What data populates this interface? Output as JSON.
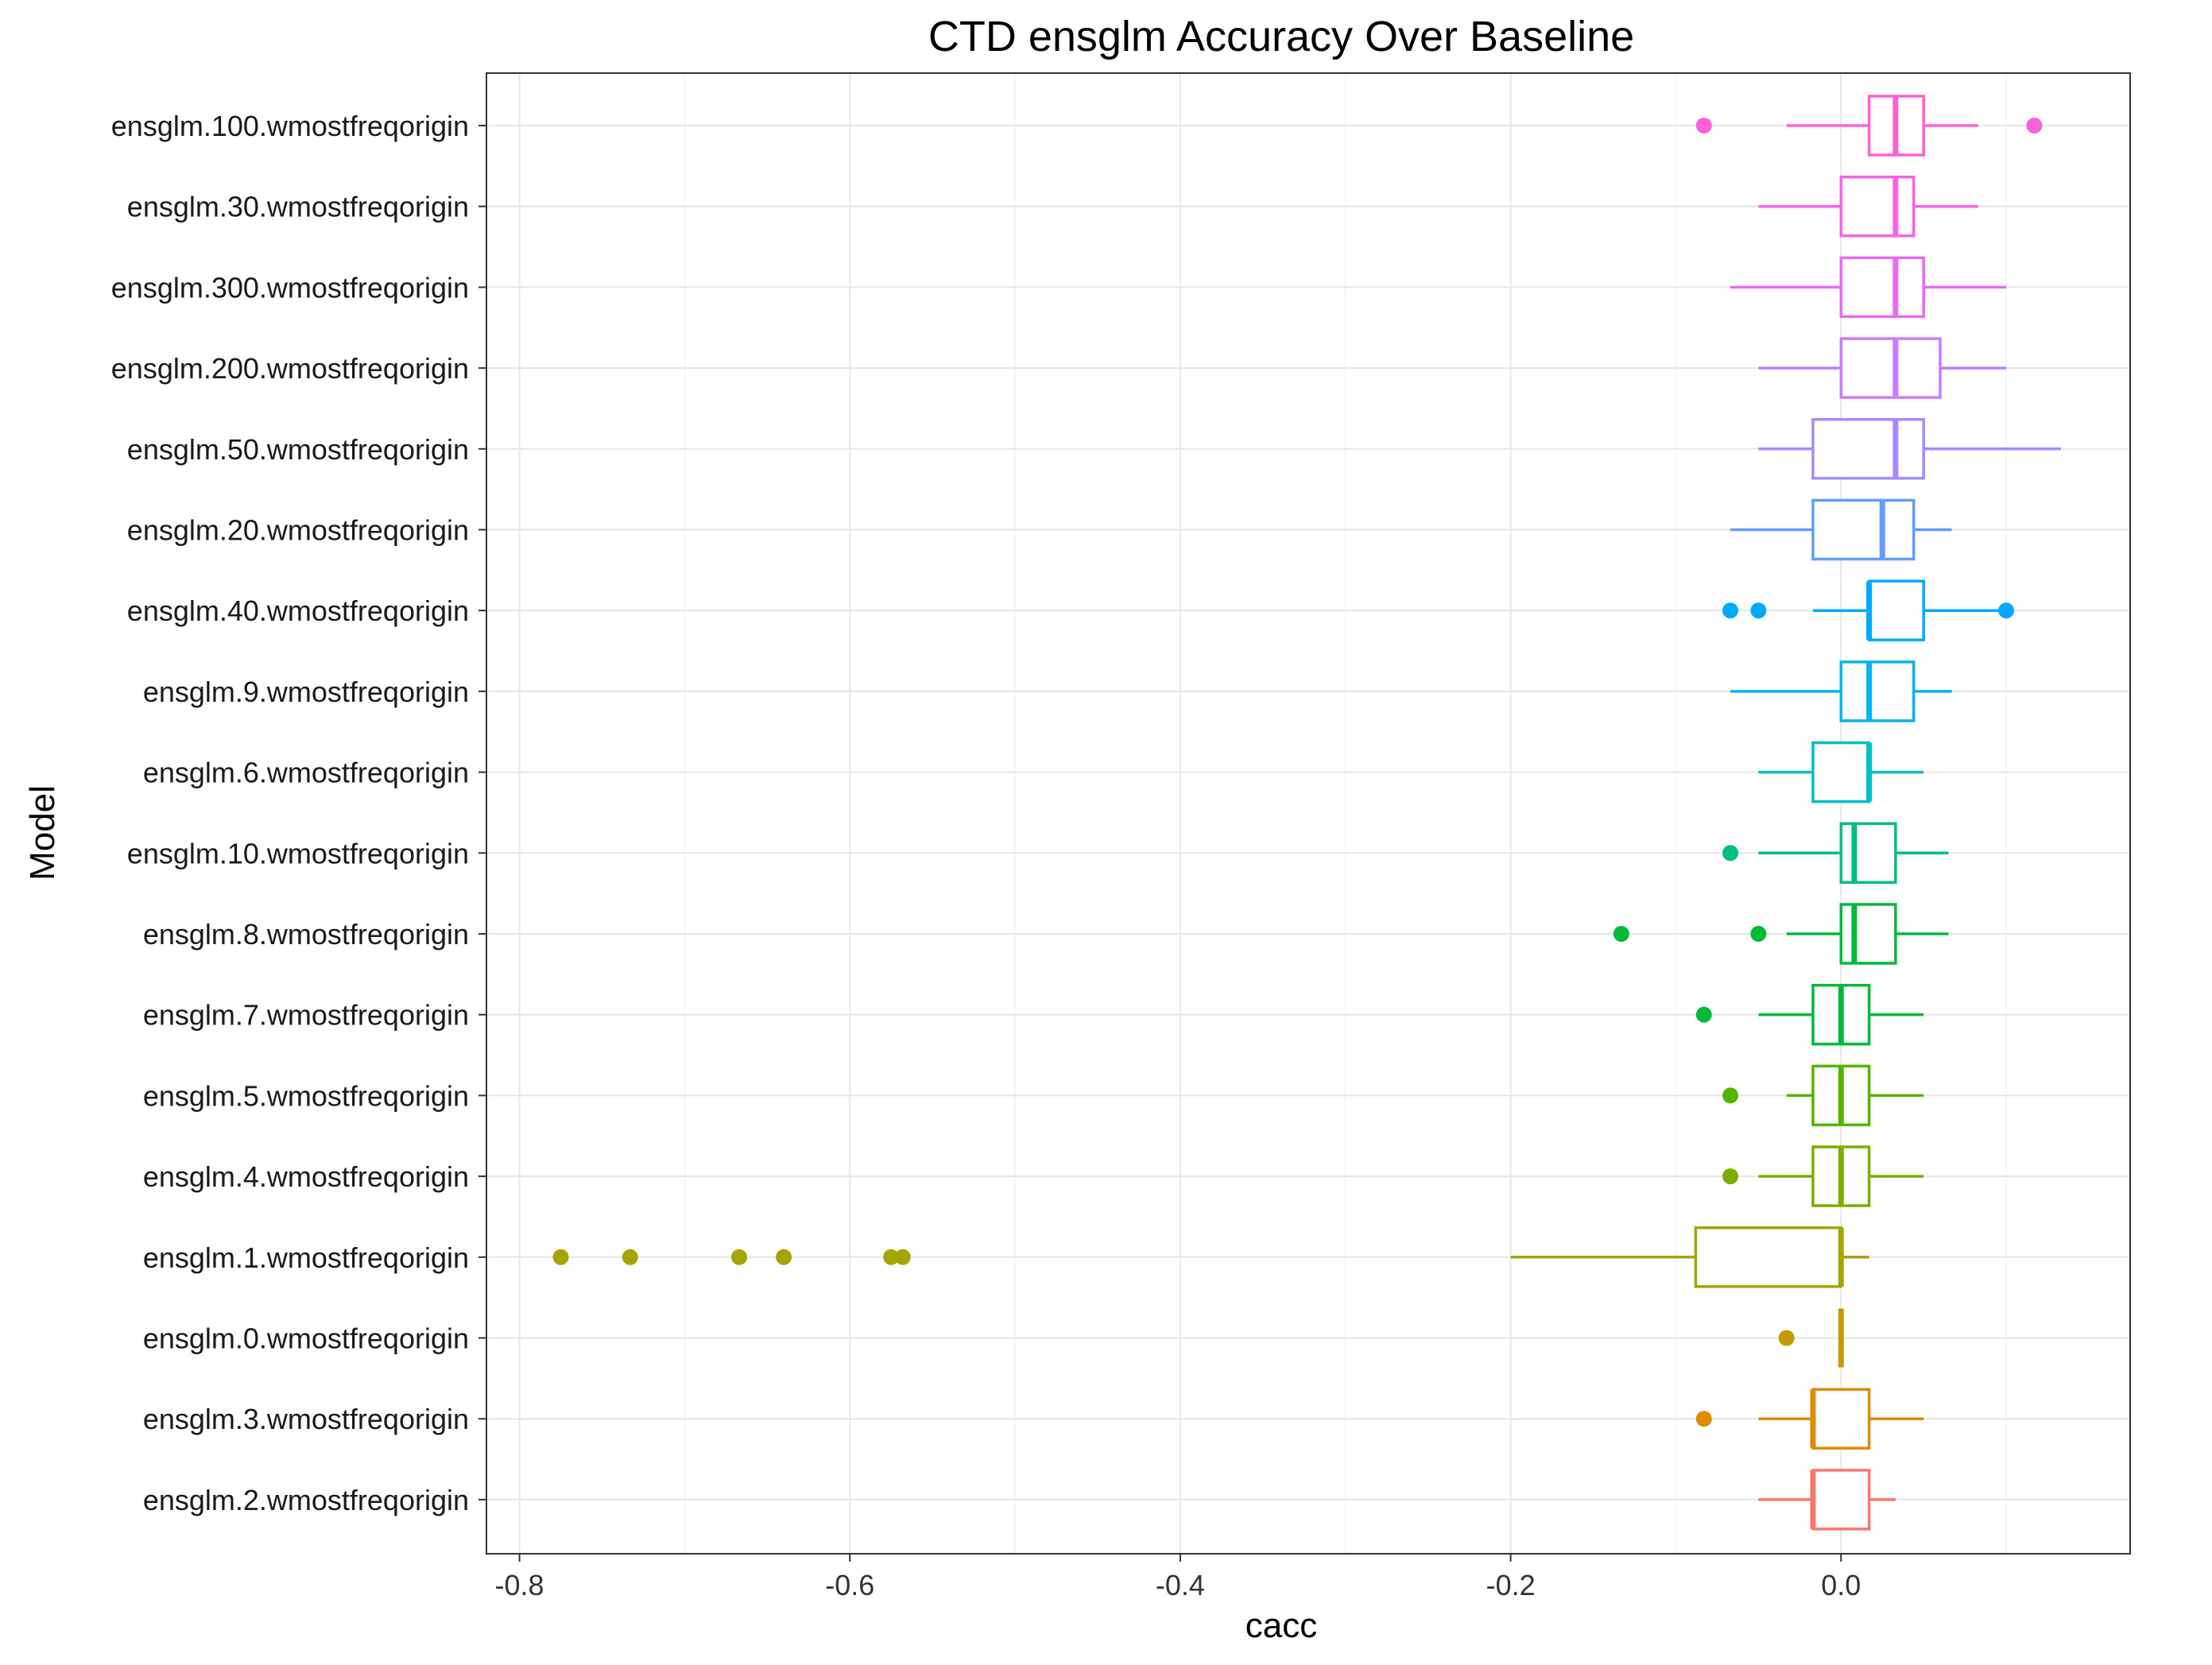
{
  "chart_data": {
    "type": "boxplot",
    "orientation": "horizontal",
    "title": "CTD ensglm Accuracy Over Baseline",
    "xlabel": "cacc",
    "ylabel": "Model",
    "xlim": [
      -0.82,
      0.175
    ],
    "xticks": [
      -0.8,
      -0.6,
      -0.4,
      -0.2,
      0.0
    ],
    "xtick_labels": [
      "-0.8",
      "-0.6",
      "-0.4",
      "-0.2",
      "0.0"
    ],
    "grid": true,
    "legend": "none",
    "categories": [
      "ensglm.100.wmostfreqorigin",
      "ensglm.30.wmostfreqorigin",
      "ensglm.300.wmostfreqorigin",
      "ensglm.200.wmostfreqorigin",
      "ensglm.50.wmostfreqorigin",
      "ensglm.20.wmostfreqorigin",
      "ensglm.40.wmostfreqorigin",
      "ensglm.9.wmostfreqorigin",
      "ensglm.6.wmostfreqorigin",
      "ensglm.10.wmostfreqorigin",
      "ensglm.8.wmostfreqorigin",
      "ensglm.7.wmostfreqorigin",
      "ensglm.5.wmostfreqorigin",
      "ensglm.4.wmostfreqorigin",
      "ensglm.1.wmostfreqorigin",
      "ensglm.0.wmostfreqorigin",
      "ensglm.3.wmostfreqorigin",
      "ensglm.2.wmostfreqorigin"
    ],
    "boxes": [
      {
        "whisker_low": -0.033,
        "q1": 0.017,
        "median": 0.033,
        "q3": 0.05,
        "whisker_high": 0.083,
        "outliers": [
          -0.083,
          0.117
        ],
        "color": "#FB61D7"
      },
      {
        "whisker_low": -0.05,
        "q1": 0.0,
        "median": 0.033,
        "q3": 0.044,
        "whisker_high": 0.083,
        "outliers": [],
        "color": "#F564E3"
      },
      {
        "whisker_low": -0.067,
        "q1": 0.0,
        "median": 0.033,
        "q3": 0.05,
        "whisker_high": 0.1,
        "outliers": [],
        "color": "#E76BF3"
      },
      {
        "whisker_low": -0.05,
        "q1": 0.0,
        "median": 0.033,
        "q3": 0.06,
        "whisker_high": 0.1,
        "outliers": [],
        "color": "#C77CFF"
      },
      {
        "whisker_low": -0.05,
        "q1": -0.017,
        "median": 0.033,
        "q3": 0.05,
        "whisker_high": 0.133,
        "outliers": [],
        "color": "#A58AFF"
      },
      {
        "whisker_low": -0.067,
        "q1": -0.017,
        "median": 0.025,
        "q3": 0.044,
        "whisker_high": 0.067,
        "outliers": [],
        "color": "#619CFF"
      },
      {
        "whisker_low": -0.017,
        "q1": 0.017,
        "median": 0.017,
        "q3": 0.05,
        "whisker_high": 0.1,
        "outliers": [
          -0.067,
          -0.05,
          0.1
        ],
        "color": "#00A9FF"
      },
      {
        "whisker_low": -0.067,
        "q1": 0.0,
        "median": 0.017,
        "q3": 0.044,
        "whisker_high": 0.067,
        "outliers": [],
        "color": "#00B4EF"
      },
      {
        "whisker_low": -0.05,
        "q1": -0.017,
        "median": 0.017,
        "q3": 0.017,
        "whisker_high": 0.05,
        "outliers": [],
        "color": "#00BFC4"
      },
      {
        "whisker_low": -0.05,
        "q1": 0.0,
        "median": 0.008,
        "q3": 0.033,
        "whisker_high": 0.065,
        "outliers": [
          -0.067
        ],
        "color": "#00BF7D"
      },
      {
        "whisker_low": -0.033,
        "q1": 0.0,
        "median": 0.008,
        "q3": 0.033,
        "whisker_high": 0.065,
        "outliers": [
          -0.133,
          -0.05
        ],
        "color": "#00BA38"
      },
      {
        "whisker_low": -0.05,
        "q1": -0.017,
        "median": 0.0,
        "q3": 0.017,
        "whisker_high": 0.05,
        "outliers": [
          -0.083
        ],
        "color": "#00BA38"
      },
      {
        "whisker_low": -0.033,
        "q1": -0.017,
        "median": 0.0,
        "q3": 0.017,
        "whisker_high": 0.05,
        "outliers": [
          -0.067
        ],
        "color": "#53B400"
      },
      {
        "whisker_low": -0.05,
        "q1": -0.017,
        "median": 0.0,
        "q3": 0.017,
        "whisker_high": 0.05,
        "outliers": [
          -0.067
        ],
        "color": "#7CAE00"
      },
      {
        "whisker_low": -0.2,
        "q1": -0.088,
        "median": 0.0,
        "q3": 0.0,
        "whisker_high": 0.017,
        "outliers": [
          -0.775,
          -0.733,
          -0.667,
          -0.64,
          -0.575,
          -0.568
        ],
        "color": "#A3A500"
      },
      {
        "whisker_low": 0.0,
        "q1": 0.0,
        "median": 0.0,
        "q3": 0.0,
        "whisker_high": 0.0,
        "outliers": [
          -0.033
        ],
        "color": "#C49A00"
      },
      {
        "whisker_low": -0.05,
        "q1": -0.017,
        "median": -0.017,
        "q3": 0.017,
        "whisker_high": 0.05,
        "outliers": [
          -0.083
        ],
        "color": "#DE8C00"
      },
      {
        "whisker_low": -0.05,
        "q1": -0.017,
        "median": -0.017,
        "q3": 0.017,
        "whisker_high": 0.033,
        "outliers": [],
        "color": "#F8766D"
      }
    ]
  }
}
